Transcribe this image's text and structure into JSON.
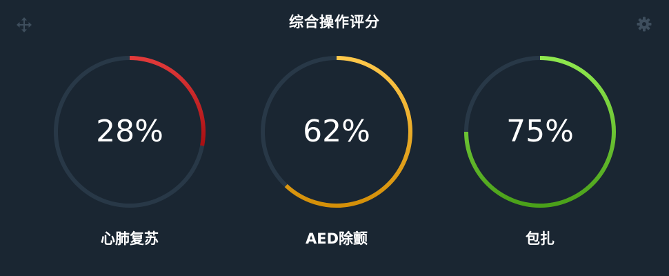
{
  "header": {
    "title": "综合操作评分",
    "move_icon": "move-arrows-icon",
    "settings_icon": "gear-icon"
  },
  "gauges": [
    {
      "label": "心肺复苏",
      "percent_text": "28%",
      "percent": 28,
      "color_start": "#e23a3a",
      "color_end": "#a80f12"
    },
    {
      "label": "AED除颤",
      "percent_text": "62%",
      "percent": 62,
      "color_start": "#ffc84a",
      "color_end": "#d48f08"
    },
    {
      "label": "包扎",
      "percent_text": "75%",
      "percent": 75,
      "color_start": "#8fe84e",
      "color_end": "#4aa019"
    }
  ],
  "colors": {
    "background": "#1a2632",
    "track": "#283847",
    "text": "#ffffff",
    "icon": "#3e4e5d"
  }
}
